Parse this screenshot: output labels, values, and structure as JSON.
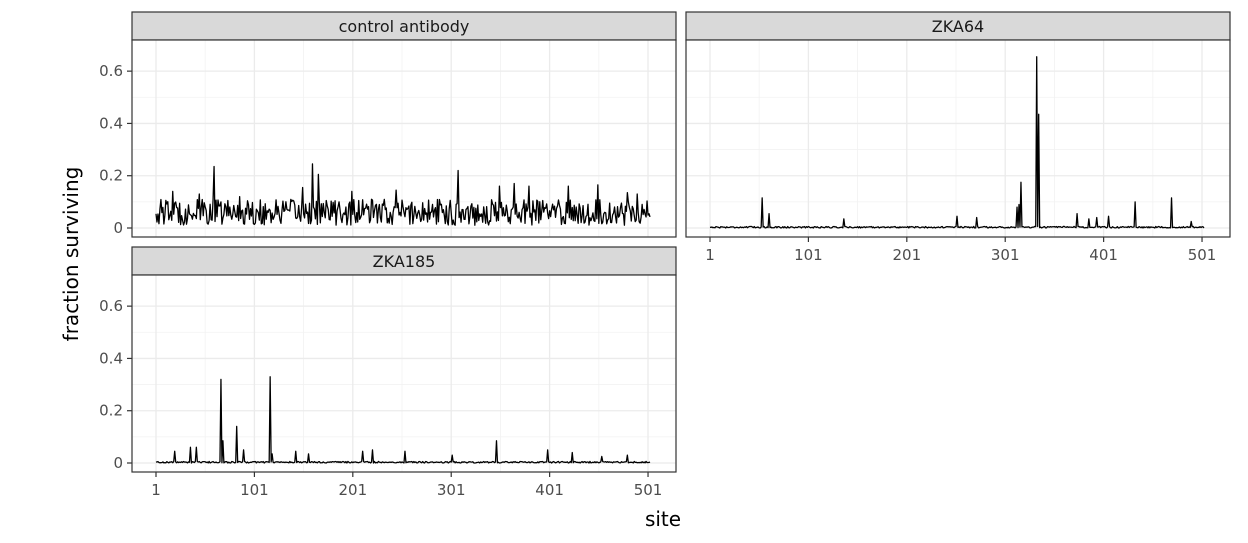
{
  "chart_data": {
    "type": "line",
    "xlabel": "site",
    "ylabel": "fraction surviving",
    "x_range": [
      1,
      503
    ],
    "ylim": [
      0,
      0.7
    ],
    "x_ticks": [
      1,
      101,
      201,
      301,
      401,
      501
    ],
    "y_ticks": [
      0,
      0.2,
      0.4,
      0.6
    ],
    "y_tick_labels": [
      "0",
      "0.2",
      "0.4",
      "0.6"
    ],
    "grid": true,
    "legend": "none",
    "line_color": "#000000",
    "panels": [
      {
        "strip": "control antibody",
        "baseline_profile": "noisy",
        "peaks": [
          {
            "site": 60,
            "value": 0.235
          },
          {
            "site": 160,
            "value": 0.245
          },
          {
            "site": 166,
            "value": 0.205
          },
          {
            "site": 308,
            "value": 0.22
          },
          {
            "site": 18,
            "value": 0.14
          },
          {
            "site": 45,
            "value": 0.13
          },
          {
            "site": 86,
            "value": 0.12
          },
          {
            "site": 150,
            "value": 0.155
          },
          {
            "site": 200,
            "value": 0.14
          },
          {
            "site": 245,
            "value": 0.145
          },
          {
            "site": 350,
            "value": 0.16
          },
          {
            "site": 365,
            "value": 0.17
          },
          {
            "site": 380,
            "value": 0.16
          },
          {
            "site": 420,
            "value": 0.16
          },
          {
            "site": 450,
            "value": 0.165
          },
          {
            "site": 480,
            "value": 0.135
          },
          {
            "site": 490,
            "value": 0.13
          }
        ]
      },
      {
        "strip": "ZKA64",
        "baseline_profile": "low",
        "peaks": [
          {
            "site": 54,
            "value": 0.115
          },
          {
            "site": 61,
            "value": 0.055
          },
          {
            "site": 137,
            "value": 0.035
          },
          {
            "site": 252,
            "value": 0.045
          },
          {
            "site": 272,
            "value": 0.04
          },
          {
            "site": 313,
            "value": 0.08
          },
          {
            "site": 315,
            "value": 0.09
          },
          {
            "site": 317,
            "value": 0.175
          },
          {
            "site": 333,
            "value": 0.655
          },
          {
            "site": 335,
            "value": 0.435
          },
          {
            "site": 374,
            "value": 0.055
          },
          {
            "site": 386,
            "value": 0.035
          },
          {
            "site": 394,
            "value": 0.04
          },
          {
            "site": 406,
            "value": 0.045
          },
          {
            "site": 433,
            "value": 0.1
          },
          {
            "site": 470,
            "value": 0.115
          },
          {
            "site": 490,
            "value": 0.025
          }
        ]
      },
      {
        "strip": "ZKA185",
        "baseline_profile": "low",
        "peaks": [
          {
            "site": 20,
            "value": 0.045
          },
          {
            "site": 36,
            "value": 0.06
          },
          {
            "site": 42,
            "value": 0.06
          },
          {
            "site": 67,
            "value": 0.32
          },
          {
            "site": 69,
            "value": 0.085
          },
          {
            "site": 83,
            "value": 0.14
          },
          {
            "site": 90,
            "value": 0.05
          },
          {
            "site": 117,
            "value": 0.33
          },
          {
            "site": 119,
            "value": 0.035
          },
          {
            "site": 143,
            "value": 0.045
          },
          {
            "site": 156,
            "value": 0.035
          },
          {
            "site": 211,
            "value": 0.045
          },
          {
            "site": 221,
            "value": 0.05
          },
          {
            "site": 254,
            "value": 0.045
          },
          {
            "site": 302,
            "value": 0.03
          },
          {
            "site": 347,
            "value": 0.085
          },
          {
            "site": 399,
            "value": 0.05
          },
          {
            "site": 424,
            "value": 0.04
          },
          {
            "site": 454,
            "value": 0.025
          },
          {
            "site": 480,
            "value": 0.03
          }
        ]
      }
    ]
  }
}
